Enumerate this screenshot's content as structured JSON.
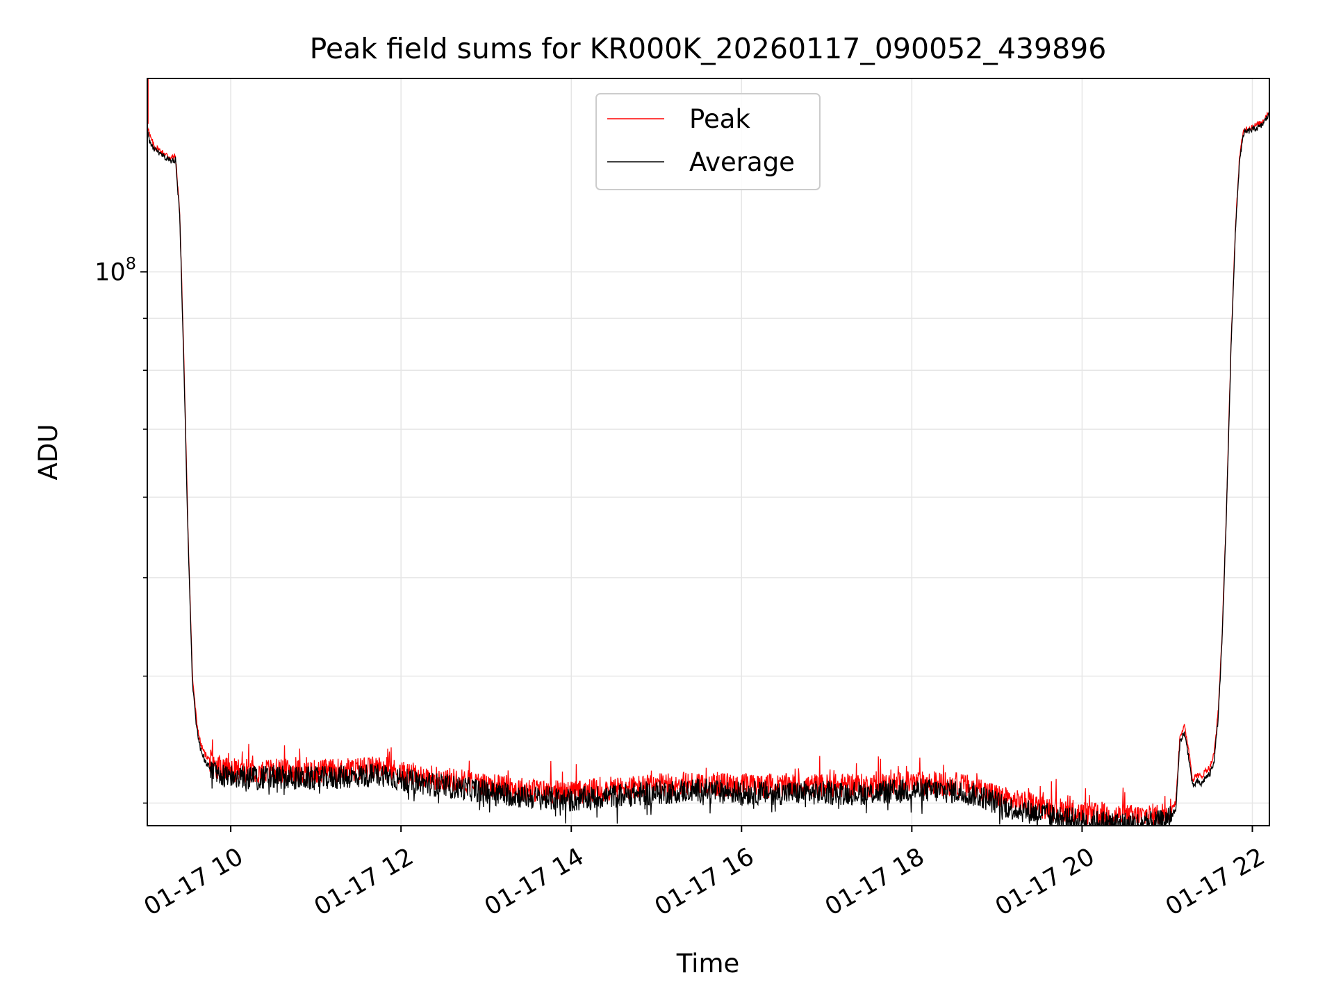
{
  "chart_data": {
    "type": "line",
    "title": "Peak field sums for KR000K_20260117_090052_439896",
    "xlabel": "Time",
    "ylabel": "ADU",
    "yscale": "log",
    "grid": true,
    "legend_position": "top-center",
    "xlim_hours": [
      9.02,
      22.2
    ],
    "ylim": [
      28500000,
      155000000
    ],
    "x_ticks": [
      {
        "hour": 10,
        "label": "01-17 10"
      },
      {
        "hour": 12,
        "label": "01-17 12"
      },
      {
        "hour": 14,
        "label": "01-17 14"
      },
      {
        "hour": 16,
        "label": "01-17 16"
      },
      {
        "hour": 18,
        "label": "01-17 18"
      },
      {
        "hour": 20,
        "label": "01-17 20"
      },
      {
        "hour": 22,
        "label": "01-17 22"
      }
    ],
    "y_major_ticks": [
      {
        "value": 100000000,
        "base": "10",
        "exp": "8"
      }
    ],
    "y_minor_ticks": [
      30000000,
      40000000,
      50000000,
      60000000,
      70000000,
      80000000,
      90000000
    ],
    "series": [
      {
        "name": "Peak",
        "color": "#ff0000",
        "x": [
          9.02,
          9.05,
          9.1,
          9.2,
          9.3,
          9.35,
          9.4,
          9.45,
          9.5,
          9.55,
          9.6,
          9.65,
          9.7,
          9.75,
          9.8,
          9.9,
          10.0,
          10.5,
          11.0,
          11.5,
          11.8,
          12.0,
          12.5,
          13.0,
          13.5,
          14.0,
          14.5,
          15.0,
          15.5,
          16.0,
          16.5,
          17.0,
          17.5,
          18.0,
          18.5,
          18.8,
          19.0,
          19.2,
          19.5,
          19.8,
          20.0,
          20.3,
          20.6,
          20.9,
          21.0,
          21.1,
          21.15,
          21.2,
          21.25,
          21.3,
          21.35,
          21.4,
          21.45,
          21.5,
          21.55,
          21.6,
          21.65,
          21.7,
          21.75,
          21.8,
          21.85,
          21.9,
          22.0,
          22.1,
          22.2
        ],
        "y": [
          140000000,
          136000000,
          133000000,
          131000000,
          129500000,
          130000000,
          115000000,
          82000000,
          55000000,
          40000000,
          36000000,
          34200000,
          33500000,
          33100000,
          32700000,
          32400000,
          32300000,
          32300000,
          32200000,
          32400000,
          32500000,
          32100000,
          31700000,
          31300000,
          30900000,
          30700000,
          31000000,
          31200000,
          31400000,
          31200000,
          31200000,
          31200000,
          31200000,
          31400000,
          31300000,
          31000000,
          30500000,
          30100000,
          29800000,
          29500000,
          29300000,
          29200000,
          29100000,
          29200000,
          29400000,
          30000000,
          35000000,
          35700000,
          34000000,
          31600000,
          32000000,
          31800000,
          32300000,
          32500000,
          33500000,
          37000000,
          45000000,
          60000000,
          85000000,
          110000000,
          130000000,
          138000000,
          139000000,
          140000000,
          144000000
        ]
      },
      {
        "name": "Average",
        "color": "#000000",
        "x": [
          9.02,
          9.05,
          9.1,
          9.2,
          9.3,
          9.35,
          9.4,
          9.45,
          9.5,
          9.55,
          9.6,
          9.65,
          9.7,
          9.75,
          9.8,
          9.9,
          10.0,
          10.5,
          11.0,
          11.5,
          11.8,
          12.0,
          12.5,
          13.0,
          13.5,
          14.0,
          14.5,
          15.0,
          15.5,
          16.0,
          16.5,
          17.0,
          17.5,
          18.0,
          18.5,
          18.8,
          19.0,
          19.2,
          19.5,
          19.8,
          20.0,
          20.3,
          20.6,
          20.9,
          21.0,
          21.1,
          21.15,
          21.2,
          21.25,
          21.3,
          21.35,
          21.4,
          21.45,
          21.5,
          21.55,
          21.6,
          21.65,
          21.7,
          21.75,
          21.8,
          21.85,
          21.9,
          22.0,
          22.1,
          22.2
        ],
        "y": [
          138000000,
          134000000,
          132000000,
          130000000,
          128500000,
          129000000,
          114000000,
          81000000,
          54000000,
          39500000,
          35500000,
          33700000,
          33000000,
          32600000,
          32200000,
          31900000,
          31800000,
          31800000,
          31700000,
          31900000,
          32000000,
          31600000,
          31200000,
          30800000,
          30400000,
          30200000,
          30500000,
          30700000,
          30900000,
          30700000,
          30700000,
          30700000,
          30700000,
          30900000,
          30800000,
          30500000,
          30000000,
          29600000,
          29300000,
          29000000,
          28800000,
          28700000,
          28600000,
          28700000,
          28900000,
          29500000,
          34500000,
          35200000,
          33400000,
          31100000,
          31500000,
          31300000,
          31800000,
          32000000,
          33000000,
          36500000,
          44500000,
          59500000,
          84500000,
          109000000,
          129000000,
          137000000,
          138000000,
          139000000,
          143000000
        ]
      }
    ]
  }
}
